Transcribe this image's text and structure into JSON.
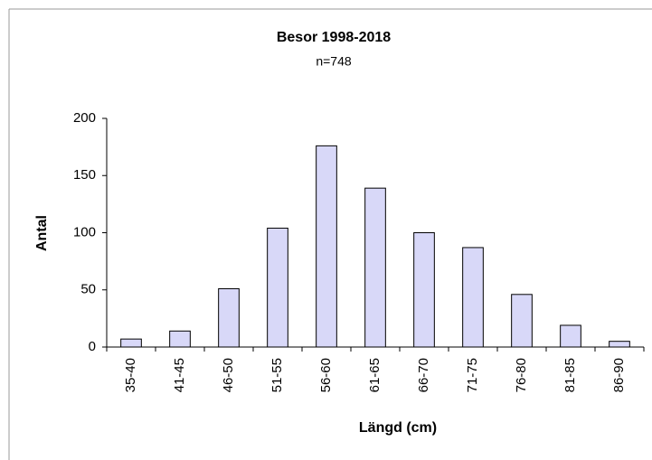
{
  "chart_data": {
    "type": "bar",
    "title": "Besor 1998-2018",
    "subtitle": "n=748",
    "x_label": "Längd (cm)",
    "y_label": "Antal",
    "categories": [
      "35-40",
      "41-45",
      "46-50",
      "51-55",
      "56-60",
      "61-65",
      "66-70",
      "71-75",
      "76-80",
      "81-85",
      "86-90"
    ],
    "values": [
      7,
      14,
      51,
      104,
      176,
      139,
      100,
      87,
      46,
      19,
      5
    ],
    "color": "#d8d8f8",
    "ylim": [
      0,
      200
    ],
    "yticks": [
      0,
      50,
      100,
      150,
      200
    ],
    "grid": false
  }
}
